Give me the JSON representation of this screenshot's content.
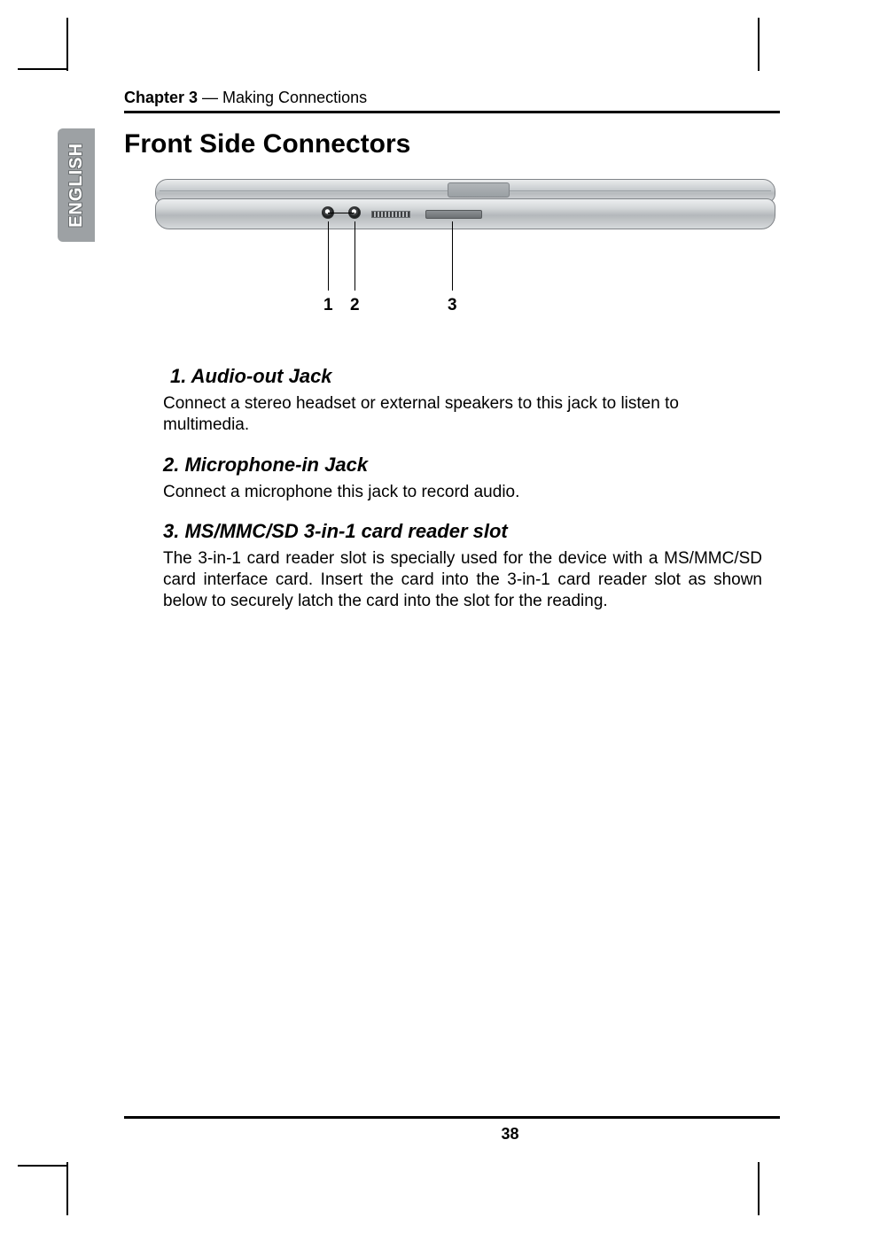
{
  "chapter": {
    "label_bold": "Chapter 3",
    "label_rest": " — Making Connections"
  },
  "sidebar": {
    "label": "ENGLISH"
  },
  "title": "Front Side Connectors",
  "diagram": {
    "callouts": {
      "n1": "1",
      "n2": "2",
      "n3": "3"
    },
    "colors": {
      "outline": "#808488",
      "lid_grad_top": "#e9ebec",
      "lid_grad_bottom": "#d6d9db",
      "body_grad_mid": "#b4b8bb"
    }
  },
  "sections": [
    {
      "heading": " 1. Audio-out Jack",
      "body": "Connect a stereo headset or external speakers to this jack to listen to multimedia."
    },
    {
      "heading": "2. Microphone-in Jack",
      "body": "Connect a microphone this jack to record audio."
    },
    {
      "heading": "3. MS/MMC/SD 3-in-1 card reader slot",
      "body": "The 3-in-1 card reader slot is specially used for the device with a MS/MMC/SD card interface card. Insert the card into the 3-in-1 card reader slot as shown below to securely latch the card into the slot for the reading."
    }
  ],
  "page_number": "38"
}
